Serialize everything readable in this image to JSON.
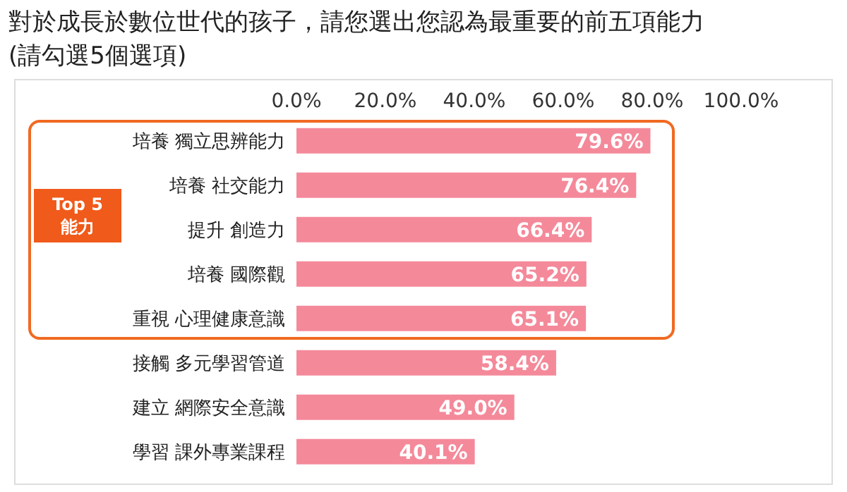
{
  "chart_data": {
    "type": "bar",
    "orientation": "horizontal",
    "title": "對於成長於數位世代的孩子，請您選出您認為最重要的前五項能力",
    "subtitle": "(請勾選5個選項)",
    "categories": [
      "培養 獨立思辨能力",
      "培養 社交能力",
      "提升 創造力",
      "培養 國際觀",
      "重視 心理健康意識",
      "接觸 多元學習管道",
      "建立 網際安全意識",
      "學習 課外專業課程"
    ],
    "values": [
      79.6,
      76.4,
      66.4,
      65.2,
      65.1,
      58.4,
      49.0,
      40.1
    ],
    "value_labels": [
      "79.6%",
      "76.4%",
      "66.4%",
      "65.2%",
      "65.1%",
      "58.4%",
      "49.0%",
      "40.1%"
    ],
    "color": "#f4899a",
    "xlim": [
      0,
      100
    ],
    "xticks": [
      {
        "value": 0,
        "label": "0.0%"
      },
      {
        "value": 20,
        "label": "20.0%"
      },
      {
        "value": 40,
        "label": "40.0%"
      },
      {
        "value": 60,
        "label": "60.0%"
      },
      {
        "value": 80,
        "label": "80.0%"
      },
      {
        "value": 100,
        "label": "100.0%"
      }
    ],
    "annotations": [
      "Top 5\n能力"
    ]
  }
}
